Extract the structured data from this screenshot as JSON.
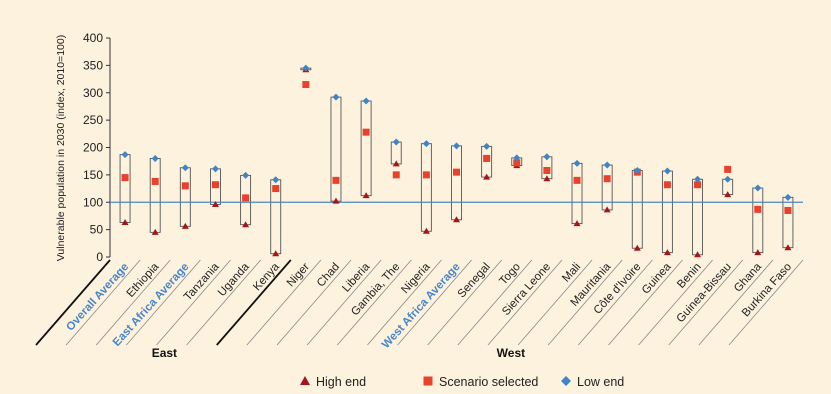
{
  "chart_data": {
    "type": "range",
    "ylabel": "Vulnerable population in 2030 (index, 2010=100)",
    "ylim": [
      0,
      400
    ],
    "yticks": [
      0,
      50,
      100,
      150,
      200,
      250,
      300,
      350,
      400
    ],
    "reference_line": 100,
    "categories": [
      "Overall Average",
      "Ethiopia",
      "East Africa Average",
      "Tanzania",
      "Uganda",
      "Kenya",
      "Niger",
      "Chad",
      "Liberia",
      "Gambia, The",
      "Nigeria",
      "West Africa Average",
      "Senegal",
      "Togo",
      "Sierra Leone",
      "Mali",
      "Mauritania",
      "Côte d'Ivoire",
      "Guinea",
      "Benin",
      "Guinea-Bissau",
      "Ghana",
      "Burkina Faso"
    ],
    "highlighted_categories": [
      "Overall Average",
      "East Africa Average",
      "West Africa Average"
    ],
    "groups": [
      {
        "name": "East",
        "from": "Overall Average",
        "to": "Kenya"
      },
      {
        "name": "West",
        "from": "Niger",
        "to": "Burkina Faso"
      }
    ],
    "series": [
      {
        "name": "High end",
        "marker": "triangle",
        "color": "#a4161a",
        "values": [
          63,
          45,
          56,
          96,
          59,
          6,
          342,
          102,
          112,
          170,
          47,
          68,
          146,
          167,
          143,
          61,
          86,
          16,
          8,
          4,
          114,
          8,
          17
        ]
      },
      {
        "name": "Scenario selected",
        "marker": "square",
        "color": "#e8412c",
        "values": [
          145,
          138,
          130,
          132,
          108,
          125,
          315,
          140,
          228,
          150,
          150,
          155,
          180,
          172,
          158,
          140,
          143,
          155,
          132,
          132,
          160,
          87,
          85
        ]
      },
      {
        "name": "Low end",
        "marker": "diamond",
        "color": "#3d85c6",
        "values": [
          187,
          180,
          163,
          161,
          149,
          141,
          345,
          292,
          285,
          210,
          207,
          203,
          202,
          181,
          183,
          171,
          168,
          158,
          157,
          142,
          142,
          126,
          109
        ]
      }
    ],
    "legend": {
      "position": "bottom",
      "labels": [
        "High end",
        "Scenario selected",
        "Low end"
      ]
    }
  }
}
